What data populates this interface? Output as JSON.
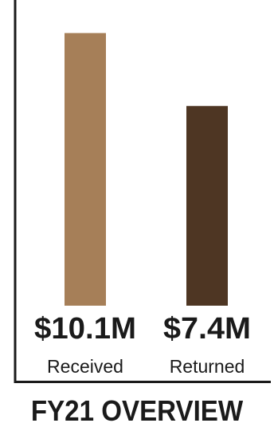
{
  "chart_data": {
    "type": "bar",
    "title": "FY21 OVERVIEW",
    "categories": [
      "Received",
      "Returned"
    ],
    "values": [
      10.1,
      7.4
    ],
    "value_labels": [
      "$10.1M",
      "$7.4M"
    ],
    "unit": "$M",
    "ylim": [
      0,
      11
    ],
    "grid": false,
    "legend": "none",
    "colors": [
      "#a67f58",
      "#4e3623"
    ],
    "axis_color": "#1a1a1a"
  }
}
